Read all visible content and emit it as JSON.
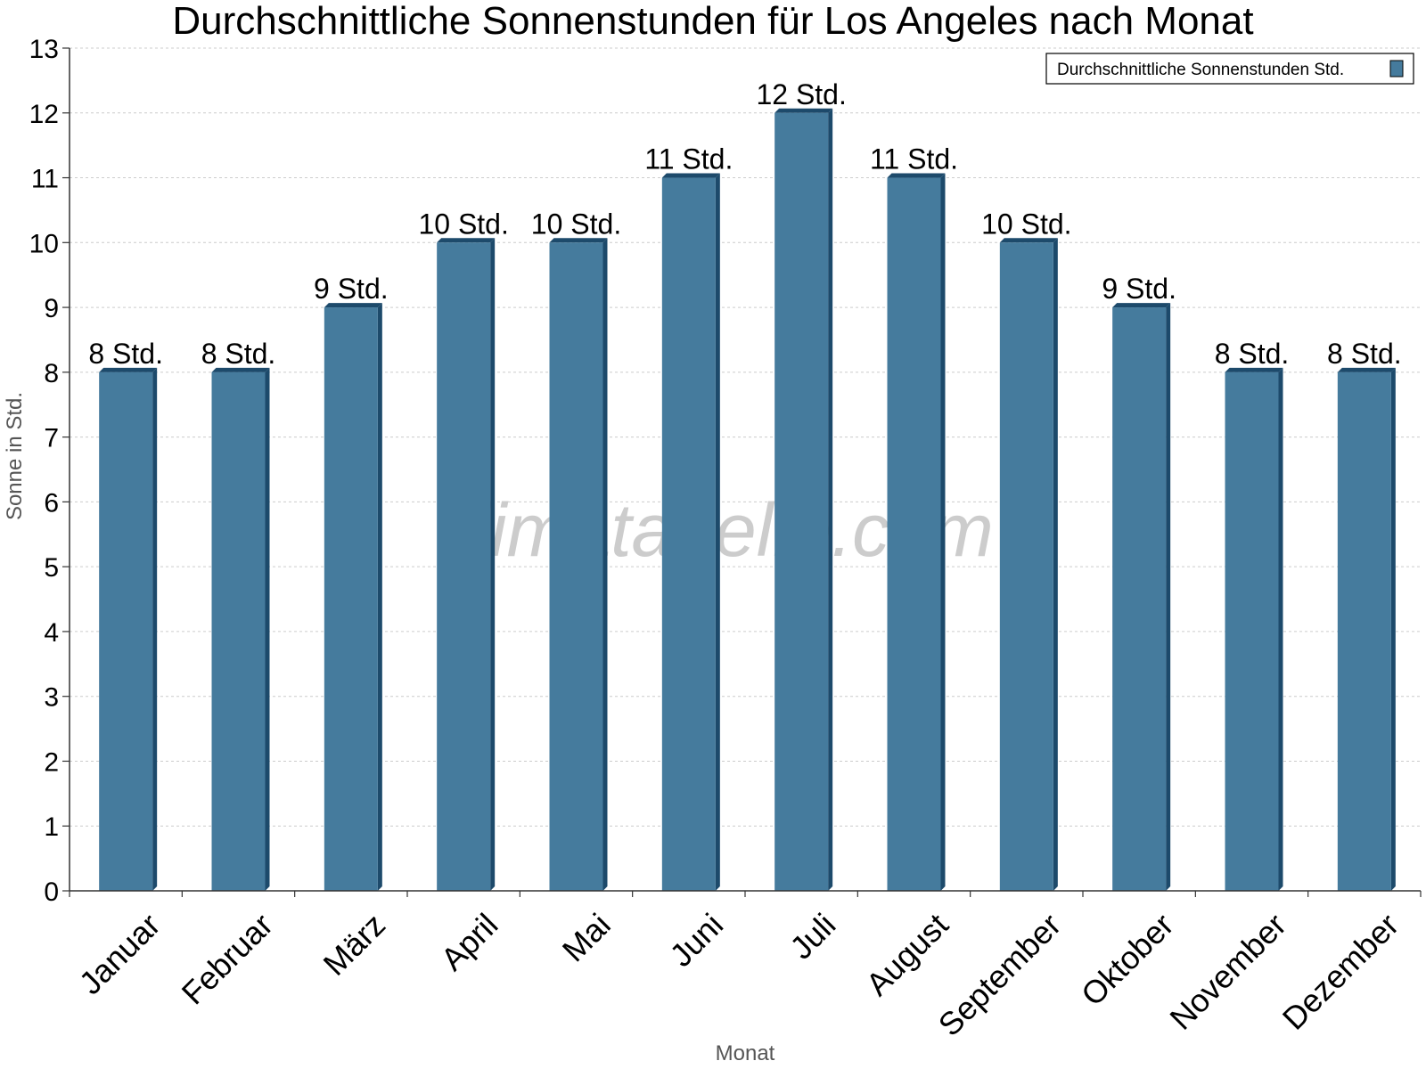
{
  "chart_data": {
    "type": "bar",
    "title": "Durchschnittliche Sonnenstunden für Los Angeles nach Monat",
    "xlabel": "Monat",
    "ylabel": "Sonne in Std.",
    "categories": [
      "Januar",
      "Februar",
      "März",
      "April",
      "Mai",
      "Juni",
      "Juli",
      "August",
      "September",
      "Oktober",
      "November",
      "Dezember"
    ],
    "series": [
      {
        "name": "Durchschnittliche Sonnenstunden Std.",
        "values": [
          8,
          8,
          9,
          10,
          10,
          11,
          12,
          11,
          10,
          9,
          8,
          8
        ],
        "labels": [
          "8 Std.",
          "8 Std.",
          "9 Std.",
          "10 Std.",
          "10 Std.",
          "11 Std.",
          "12 Std.",
          "11 Std.",
          "10 Std.",
          "9 Std.",
          "8 Std.",
          "8 Std."
        ]
      }
    ],
    "ylim": [
      0,
      13
    ],
    "yticks": [
      "0",
      "1",
      "2",
      "3",
      "4",
      "5",
      "6",
      "7",
      "8",
      "9",
      "10",
      "11",
      "12",
      "13"
    ],
    "grid": true,
    "legend_position": "top-right",
    "watermark": "klimatabelle.com",
    "colors": {
      "bar": "#457b9d",
      "bar_side": "#1d4a6b",
      "grid": "#cccccc",
      "axis": "#333333"
    }
  }
}
